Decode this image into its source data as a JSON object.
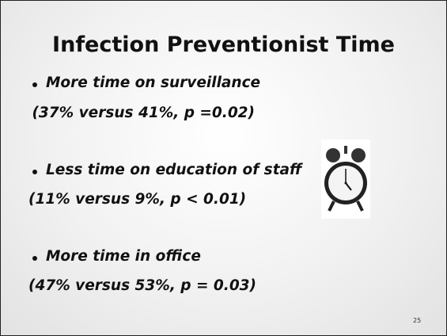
{
  "slide": {
    "title": "Infection Preventionist Time",
    "bullets": [
      {
        "text": "More time on surveillance",
        "detail": " (37% versus 41%, p =0.02)"
      },
      {
        "text": "Less time on education of staff",
        "detail": "(11% versus 9%, p < 0.01)"
      },
      {
        "text": "More time in office",
        "detail": "(47% versus 53%, p = 0.03)"
      }
    ],
    "page_number": "25"
  }
}
